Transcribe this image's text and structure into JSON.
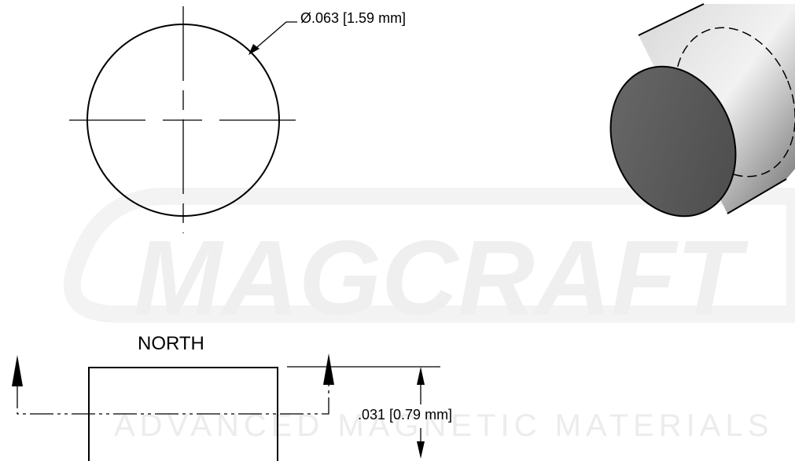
{
  "dimensions": {
    "diameter": "Ø.063 [1.59 mm]",
    "thickness": ".031 [0.79 mm]"
  },
  "labels": {
    "pole": "NORTH"
  },
  "watermark": {
    "brand": "MAGCRAFT",
    "tagline": "ADVANCED MAGNETIC MATERIALS"
  }
}
